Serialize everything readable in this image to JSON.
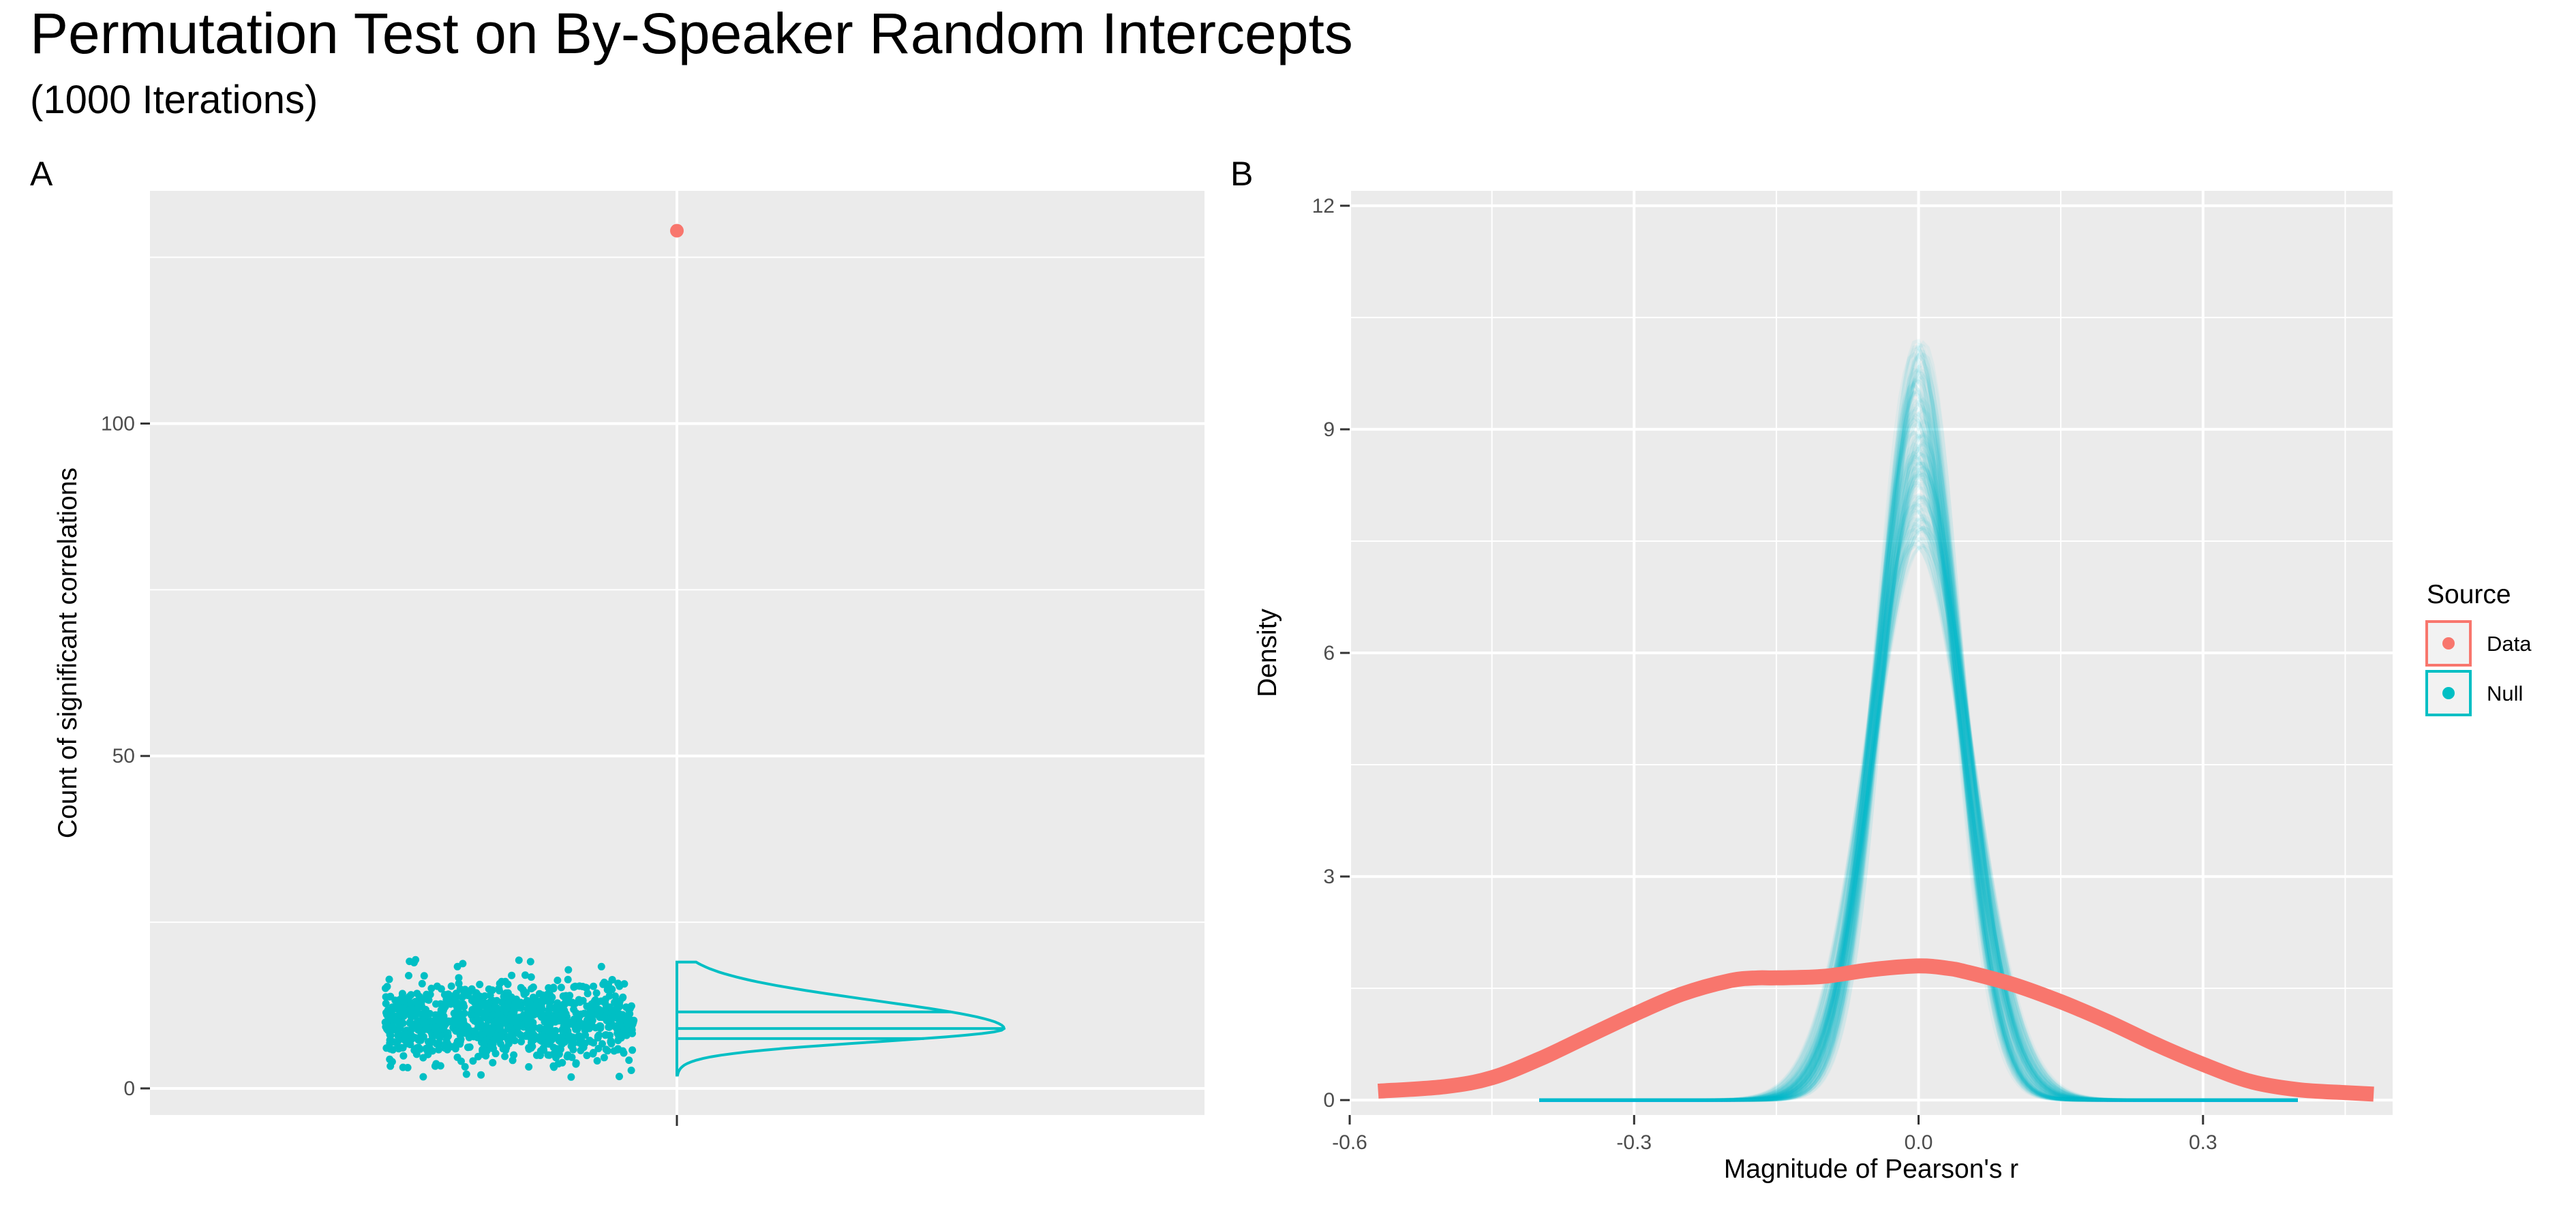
{
  "header": {
    "title": "Permutation Test on By-Speaker Random Intercepts",
    "subtitle": "(1000 Iterations)"
  },
  "colors": {
    "data": "#F8766D",
    "null": "#00BFC4",
    "panel_bg": "#EBEBEB",
    "grid": "#FFFFFF",
    "tick_text": "#4D4D4D"
  },
  "legend": {
    "title": "Source",
    "placement": "right",
    "items": [
      {
        "label": "Data",
        "color": "#F8766D"
      },
      {
        "label": "Null",
        "color": "#00BFC4"
      }
    ]
  },
  "chart_data": [
    {
      "panel": "A",
      "type": "scatter",
      "description_type": "jitter + half-violin with quartile lines",
      "ylabel": "Count of significant correlations",
      "xlabel": "",
      "ylim": [
        -4,
        135
      ],
      "yticks": [
        0,
        50,
        100
      ],
      "yticks_labels": [
        "0",
        "50",
        "100"
      ],
      "grid": true,
      "data_point": {
        "source": "Data",
        "y": 129
      },
      "null_distribution": {
        "source": "Null",
        "n": 1000,
        "range": [
          2,
          19
        ],
        "mode": 9,
        "quartiles": [
          7.5,
          9,
          11.5
        ]
      }
    },
    {
      "panel": "B",
      "type": "line",
      "description_type": "density curves",
      "xlabel": "Magnitude of Pearson's r",
      "ylabel": "Density",
      "xlim": [
        -0.6,
        0.5
      ],
      "ylim": [
        -0.2,
        12.2
      ],
      "xticks": [
        -0.6,
        -0.3,
        0.0,
        0.3
      ],
      "xticks_labels": [
        "-0.6",
        "-0.3",
        "0.0",
        "0.3"
      ],
      "yticks": [
        0,
        3,
        6,
        9,
        12
      ],
      "yticks_labels": [
        "0",
        "3",
        "6",
        "9",
        "12"
      ],
      "grid": true,
      "data_series": {
        "name": "Data",
        "x": [
          -0.57,
          -0.5,
          -0.45,
          -0.4,
          -0.35,
          -0.3,
          -0.25,
          -0.2,
          -0.17,
          -0.15,
          -0.1,
          -0.05,
          0.0,
          0.03,
          0.05,
          0.1,
          0.15,
          0.2,
          0.25,
          0.3,
          0.35,
          0.4,
          0.45,
          0.48
        ],
        "y": [
          0.12,
          0.18,
          0.3,
          0.55,
          0.85,
          1.15,
          1.42,
          1.6,
          1.64,
          1.64,
          1.66,
          1.75,
          1.8,
          1.77,
          1.72,
          1.55,
          1.32,
          1.05,
          0.75,
          0.48,
          0.25,
          0.14,
          0.1,
          0.08
        ]
      },
      "null_series": {
        "name": "Null",
        "n_curves": 1000,
        "center": 0.0,
        "peak_range": [
          7.4,
          10.2
        ],
        "sd_range": [
          0.039,
          0.054
        ]
      }
    }
  ]
}
